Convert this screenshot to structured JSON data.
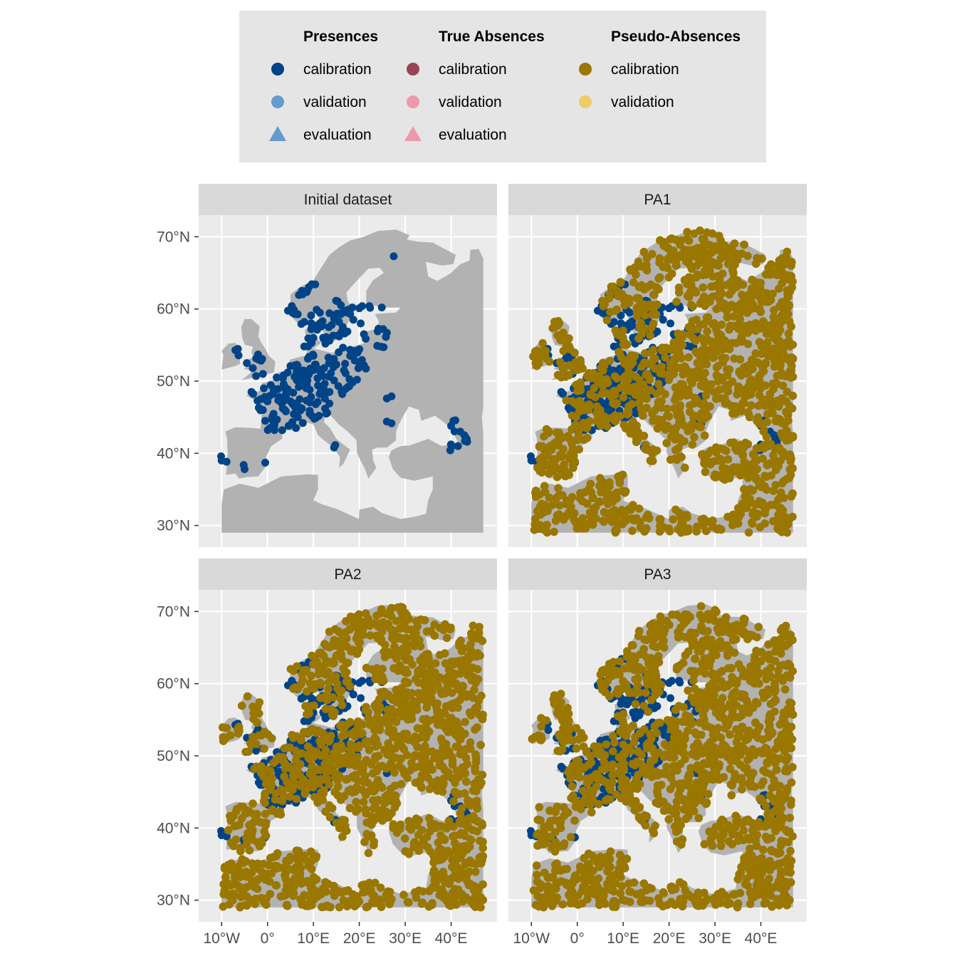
{
  "colors": {
    "panel_bg": "#EBEBEB",
    "strip_bg": "#D9D9D9",
    "grid": "#FFFFFF",
    "land": "#B2B2B2",
    "legend_bg": "#E5E5E5",
    "presence_calibration": "#004488",
    "presence_validation": "#6699CC",
    "presence_evaluation": "#6699CC",
    "absence_calibration": "#994455",
    "absence_validation": "#EE99AA",
    "absence_evaluation": "#EE99AA",
    "pseudo_calibration": "#997700",
    "pseudo_validation": "#EECC66"
  },
  "legend": {
    "groups": [
      {
        "title": "Presences",
        "items": [
          {
            "label": "calibration",
            "shape": "circle",
            "color_key": "presence_calibration"
          },
          {
            "label": "validation",
            "shape": "circle",
            "color_key": "presence_validation"
          },
          {
            "label": "evaluation",
            "shape": "triangle",
            "color_key": "presence_evaluation"
          }
        ]
      },
      {
        "title": "True Absences",
        "items": [
          {
            "label": "calibration",
            "shape": "circle",
            "color_key": "absence_calibration"
          },
          {
            "label": "validation",
            "shape": "circle",
            "color_key": "absence_validation"
          },
          {
            "label": "evaluation",
            "shape": "triangle",
            "color_key": "absence_evaluation"
          }
        ]
      },
      {
        "title": "Pseudo-Absences",
        "items": [
          {
            "label": "calibration",
            "shape": "circle",
            "color_key": "pseudo_calibration"
          },
          {
            "label": "validation",
            "shape": "circle",
            "color_key": "pseudo_validation"
          }
        ]
      }
    ]
  },
  "chart_data": {
    "type": "scatter",
    "description": "faceted map scatter of occurrence points over Europe",
    "x_ticks": [
      -10,
      0,
      10,
      20,
      30,
      40
    ],
    "x_tick_labels": [
      "10°W",
      "0°",
      "10°E",
      "20°E",
      "30°E",
      "40°E"
    ],
    "y_ticks": [
      30,
      40,
      50,
      60,
      70
    ],
    "y_tick_labels": [
      "30°N",
      "40°N",
      "50°N",
      "60°N",
      "70°N"
    ],
    "xlim": [
      -15,
      50
    ],
    "ylim": [
      27,
      73
    ],
    "extent": {
      "lon": [
        -10.5,
        47
      ],
      "lat": [
        29,
        71
      ]
    },
    "panels": [
      {
        "title": "Initial dataset",
        "pseudo_absences": false
      },
      {
        "title": "PA1",
        "pseudo_absences": true,
        "seed": 11
      },
      {
        "title": "PA2",
        "pseudo_absences": true,
        "seed": 23
      },
      {
        "title": "PA3",
        "pseudo_absences": true,
        "seed": 37
      }
    ],
    "presence_points": [
      [
        -10,
        39
      ],
      [
        -5,
        37.8
      ],
      [
        -0.5,
        38.7
      ],
      [
        -7,
        54.3
      ],
      [
        -4.5,
        52.5
      ],
      [
        -3.2,
        51.8
      ],
      [
        -2,
        53
      ],
      [
        -1,
        51
      ],
      [
        -2.5,
        50.7
      ],
      [
        -3.5,
        48.5
      ],
      [
        -1.5,
        47.5
      ],
      [
        -1,
        46
      ],
      [
        -0.5,
        44.5
      ],
      [
        0.5,
        43.5
      ],
      [
        1.5,
        48.8
      ],
      [
        2.3,
        48.9
      ],
      [
        3,
        47
      ],
      [
        4,
        45.8
      ],
      [
        5,
        47.2
      ],
      [
        6,
        46.4
      ],
      [
        7,
        47.5
      ],
      [
        7.5,
        46.2
      ],
      [
        8.5,
        47.3
      ],
      [
        9.5,
        47.8
      ],
      [
        10.5,
        46.8
      ],
      [
        11.5,
        48.2
      ],
      [
        12.5,
        47.6
      ],
      [
        13.5,
        48.5
      ],
      [
        14.5,
        50.1
      ],
      [
        16.3,
        48.2
      ],
      [
        17,
        48.9
      ],
      [
        18.5,
        49.8
      ],
      [
        19.5,
        50.2
      ],
      [
        21,
        52.2
      ],
      [
        20,
        52.5
      ],
      [
        17,
        51.1
      ],
      [
        15,
        52.3
      ],
      [
        13.4,
        52.5
      ],
      [
        11.5,
        51.3
      ],
      [
        10,
        53.5
      ],
      [
        8.8,
        53.1
      ],
      [
        7,
        51.5
      ],
      [
        6,
        52.2
      ],
      [
        5,
        52.1
      ],
      [
        4.4,
        51.2
      ],
      [
        3.5,
        50.8
      ],
      [
        2,
        50.5
      ],
      [
        6.8,
        49.2
      ],
      [
        8.4,
        49.5
      ],
      [
        9.2,
        48.8
      ],
      [
        11,
        49.4
      ],
      [
        12.2,
        49
      ],
      [
        8.7,
        50.1
      ],
      [
        9.9,
        51.5
      ],
      [
        10.5,
        52.3
      ],
      [
        12.5,
        55.7
      ],
      [
        10,
        56
      ],
      [
        9.5,
        57.2
      ],
      [
        10.5,
        57.7
      ],
      [
        11.9,
        57.7
      ],
      [
        12.8,
        56.1
      ],
      [
        13.5,
        55.6
      ],
      [
        14,
        57.8
      ],
      [
        15.6,
        56.2
      ],
      [
        16.4,
        57.5
      ],
      [
        18,
        59.3
      ],
      [
        17.6,
        59.9
      ],
      [
        16.5,
        59.6
      ],
      [
        15,
        59.3
      ],
      [
        13.5,
        59.4
      ],
      [
        12,
        58.3
      ],
      [
        10.7,
        59.9
      ],
      [
        9.5,
        59.1
      ],
      [
        8,
        58.2
      ],
      [
        6,
        59.3
      ],
      [
        5.3,
        60.4
      ],
      [
        7.5,
        62.5
      ],
      [
        9,
        63
      ],
      [
        10.4,
        63.4
      ],
      [
        16,
        60.5
      ],
      [
        18.5,
        60.2
      ],
      [
        20,
        60.1
      ],
      [
        22.2,
        60.4
      ],
      [
        24.9,
        60.2
      ],
      [
        26,
        56.7
      ],
      [
        24,
        56.9
      ],
      [
        21,
        56.5
      ],
      [
        25.3,
        54.7
      ],
      [
        23.9,
        54.9
      ],
      [
        27.5,
        67.3
      ],
      [
        26,
        47.6
      ],
      [
        26,
        44.4
      ],
      [
        14.5,
        40.8
      ],
      [
        43,
        41.7
      ],
      [
        41.5,
        41
      ],
      [
        40,
        43.8
      ],
      [
        42,
        43
      ],
      [
        40.5,
        44.5
      ],
      [
        43.5,
        41.6
      ],
      [
        40.2,
        41
      ],
      [
        4,
        48.2
      ],
      [
        3.8,
        49.2
      ],
      [
        2.6,
        47.8
      ],
      [
        5.6,
        48.4
      ],
      [
        6.6,
        45
      ],
      [
        1.5,
        44
      ],
      [
        0,
        47.2
      ],
      [
        -0.8,
        49
      ],
      [
        7.7,
        44.2
      ],
      [
        11.2,
        45.2
      ],
      [
        10.2,
        44.8
      ],
      [
        12.8,
        45.5
      ],
      [
        9.2,
        45.5
      ],
      [
        6.2,
        43.5
      ],
      [
        4.6,
        43.8
      ],
      [
        3.2,
        43.2
      ],
      [
        1,
        45
      ],
      [
        8,
        54.8
      ],
      [
        9.6,
        55.3
      ],
      [
        15.5,
        54
      ],
      [
        18,
        53.5
      ],
      [
        16.9,
        52.4
      ],
      [
        19,
        54.2
      ],
      [
        17.5,
        49.2
      ],
      [
        13.8,
        51.1
      ],
      [
        8.2,
        50.9
      ],
      [
        7.4,
        50.1
      ],
      [
        5.9,
        50.6
      ],
      [
        6.3,
        51.8
      ],
      [
        10.9,
        50.4
      ],
      [
        12.1,
        50.7
      ],
      [
        16.8,
        56.6
      ],
      [
        14.3,
        56.3
      ],
      [
        18.7,
        58.5
      ],
      [
        20.3,
        58
      ]
    ],
    "land_outline": [
      [
        -10,
        29
      ],
      [
        -10,
        33
      ],
      [
        -9.5,
        35
      ],
      [
        -6,
        35.8
      ],
      [
        -2,
        35.2
      ],
      [
        3,
        36.8
      ],
      [
        9,
        37.1
      ],
      [
        11,
        37
      ],
      [
        11,
        35
      ],
      [
        10,
        33.5
      ],
      [
        12,
        32.9
      ],
      [
        15,
        32.3
      ],
      [
        19.9,
        30.9
      ],
      [
        20,
        32.2
      ],
      [
        23,
        32.6
      ],
      [
        25,
        31.7
      ],
      [
        29,
        30.9
      ],
      [
        32,
        31.2
      ],
      [
        34.5,
        31.6
      ],
      [
        35,
        33.5
      ],
      [
        36,
        35
      ],
      [
        36,
        36.8
      ],
      [
        32,
        36.2
      ],
      [
        29,
        36.6
      ],
      [
        27.3,
        37.8
      ],
      [
        26.4,
        39.5
      ],
      [
        27,
        40.4
      ],
      [
        29,
        41
      ],
      [
        31,
        41.1
      ],
      [
        35,
        42
      ],
      [
        38,
        41
      ],
      [
        41.5,
        41.5
      ],
      [
        40,
        43.5
      ],
      [
        38,
        44.5
      ],
      [
        36.5,
        45.2
      ],
      [
        33.5,
        44.5
      ],
      [
        33,
        46
      ],
      [
        30.8,
        46.5
      ],
      [
        29.7,
        45.3
      ],
      [
        28.6,
        44
      ],
      [
        28,
        43
      ],
      [
        28,
        41.8
      ],
      [
        26,
        40.8
      ],
      [
        24,
        40.8
      ],
      [
        22.8,
        40.5
      ],
      [
        23,
        39
      ],
      [
        23.7,
        38
      ],
      [
        22,
        36.5
      ],
      [
        21.3,
        37.7
      ],
      [
        19.5,
        40
      ],
      [
        19.4,
        41.8
      ],
      [
        17.5,
        43
      ],
      [
        15.5,
        44
      ],
      [
        13.7,
        45.3
      ],
      [
        12.5,
        45.2
      ],
      [
        12.3,
        44.3
      ],
      [
        13.6,
        43.5
      ],
      [
        15,
        42
      ],
      [
        18,
        40.5
      ],
      [
        16.5,
        38.5
      ],
      [
        15.6,
        38
      ],
      [
        15.8,
        39.5
      ],
      [
        14.3,
        40.8
      ],
      [
        11,
        42.5
      ],
      [
        10,
        44
      ],
      [
        8.5,
        44.3
      ],
      [
        6.5,
        43.1
      ],
      [
        3.3,
        43.3
      ],
      [
        3.2,
        42
      ],
      [
        0.8,
        41
      ],
      [
        -0.3,
        39.5
      ],
      [
        0.2,
        38.7
      ],
      [
        -2,
        36.8
      ],
      [
        -4.5,
        36.7
      ],
      [
        -6.2,
        36.5
      ],
      [
        -7,
        37.2
      ],
      [
        -9,
        37
      ],
      [
        -8.7,
        40
      ],
      [
        -8.8,
        42
      ],
      [
        -9.2,
        43
      ],
      [
        -7,
        43.6
      ],
      [
        -3.5,
        43.5
      ],
      [
        -1.5,
        43.4
      ],
      [
        -1.2,
        46
      ],
      [
        -2.2,
        47.2
      ],
      [
        -4.7,
        48
      ],
      [
        -1.6,
        48.7
      ],
      [
        -1.3,
        49.7
      ],
      [
        1.5,
        50.2
      ],
      [
        1.6,
        51
      ],
      [
        4,
        51.5
      ],
      [
        5,
        53
      ],
      [
        8.5,
        53.6
      ],
      [
        8.6,
        55.5
      ],
      [
        8.1,
        57.1
      ],
      [
        10.5,
        57.7
      ],
      [
        10.3,
        56.2
      ],
      [
        11.7,
        55.3
      ],
      [
        10,
        54.5
      ],
      [
        12.3,
        54.2
      ],
      [
        14,
        53.9
      ],
      [
        18.5,
        54.8
      ],
      [
        21,
        55.2
      ],
      [
        21,
        56.8
      ],
      [
        23.5,
        57.2
      ],
      [
        24.3,
        58.2
      ],
      [
        23.4,
        59.3
      ],
      [
        28,
        59.5
      ],
      [
        29,
        60.2
      ],
      [
        25,
        60.2
      ],
      [
        21.5,
        60.8
      ],
      [
        21.5,
        62.5
      ],
      [
        23,
        64
      ],
      [
        25.3,
        65
      ],
      [
        24.5,
        65.7
      ],
      [
        22,
        65.6
      ],
      [
        19,
        63.6
      ],
      [
        17.2,
        62.3
      ],
      [
        17.5,
        61
      ],
      [
        19,
        60
      ],
      [
        18.5,
        59.2
      ],
      [
        16.5,
        57
      ],
      [
        16,
        56.2
      ],
      [
        14.2,
        55.4
      ],
      [
        12.5,
        56.3
      ],
      [
        11.1,
        58.8
      ],
      [
        10.5,
        59.5
      ],
      [
        8.4,
        58.1
      ],
      [
        6.5,
        58.1
      ],
      [
        5,
        59
      ],
      [
        5,
        62
      ],
      [
        7,
        63
      ],
      [
        10,
        64
      ],
      [
        11.5,
        65.5
      ],
      [
        13.5,
        67.5
      ],
      [
        15.5,
        68.5
      ],
      [
        18,
        69.5
      ],
      [
        21,
        70
      ],
      [
        24,
        70.8
      ],
      [
        28,
        71
      ],
      [
        31,
        70.2
      ],
      [
        30.3,
        69.6
      ],
      [
        33,
        69.3
      ],
      [
        36,
        69.2
      ],
      [
        41,
        67.5
      ],
      [
        40.5,
        66.2
      ],
      [
        38,
        66
      ],
      [
        34.5,
        66.5
      ],
      [
        35,
        64.5
      ],
      [
        37,
        63.9
      ],
      [
        39,
        64.6
      ],
      [
        40,
        65
      ],
      [
        42,
        66.2
      ],
      [
        44,
        66.7
      ],
      [
        44.2,
        68.2
      ],
      [
        46,
        68.3
      ],
      [
        47,
        67
      ],
      [
        47,
        29
      ],
      [
        -10,
        29
      ]
    ],
    "ireland_outline": [
      [
        -10,
        51.6
      ],
      [
        -9.6,
        53.6
      ],
      [
        -10,
        54.2
      ],
      [
        -8.5,
        55.2
      ],
      [
        -7,
        55.3
      ],
      [
        -6,
        54.5
      ],
      [
        -6,
        52.4
      ],
      [
        -7,
        52.1
      ]
    ],
    "britain_outline": [
      [
        -5.7,
        50.1
      ],
      [
        1.4,
        51.2
      ],
      [
        1.7,
        52.7
      ],
      [
        0.3,
        53.5
      ],
      [
        -0.5,
        54.5
      ],
      [
        -1.5,
        55.5
      ],
      [
        -2,
        56.2
      ],
      [
        -1.7,
        57.6
      ],
      [
        -3.5,
        58.6
      ],
      [
        -5,
        58.6
      ],
      [
        -5.7,
        57.5
      ],
      [
        -5.5,
        56
      ],
      [
        -4.9,
        55
      ],
      [
        -3.2,
        54.8
      ],
      [
        -3.5,
        53.9
      ],
      [
        -3,
        53.3
      ],
      [
        -4.7,
        52.9
      ],
      [
        -4,
        52.2
      ],
      [
        -5.2,
        51.7
      ],
      [
        -3.2,
        51.4
      ]
    ],
    "iceland_outline": [],
    "water_shapes": [
      {
        "name": "caspian",
        "points": [
          [
            47,
            46.5
          ],
          [
            46.7,
            45
          ],
          [
            47,
            42.5
          ]
        ]
      },
      {
        "name": "white_sea",
        "points": [
          [
            34.5,
            66.5
          ],
          [
            35,
            64.5
          ],
          [
            37,
            63.9
          ],
          [
            39,
            64.6
          ],
          [
            40,
            65
          ],
          [
            40.5,
            66.2
          ],
          [
            38,
            66
          ]
        ]
      }
    ]
  }
}
